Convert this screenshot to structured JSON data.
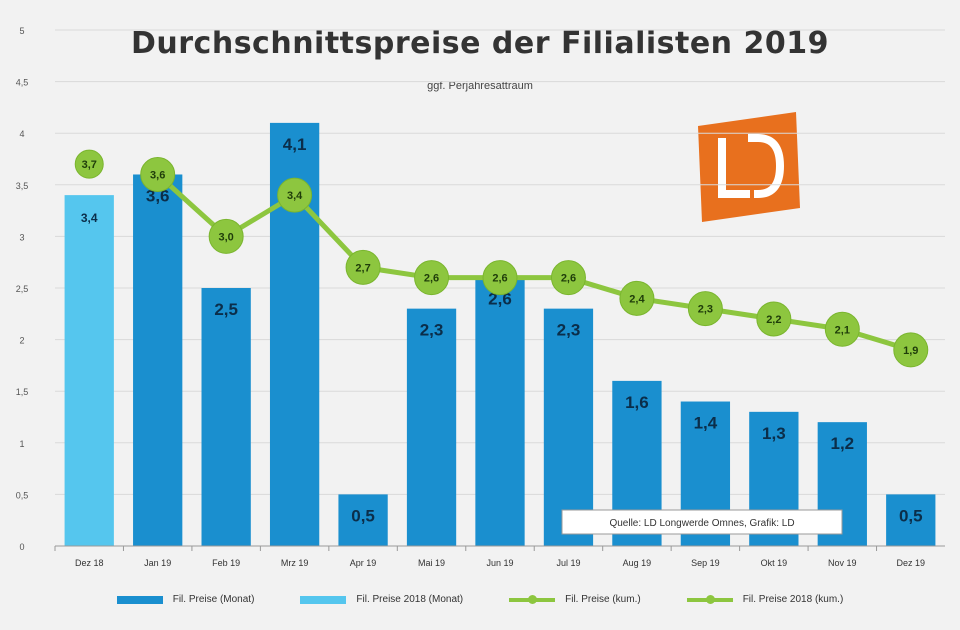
{
  "title": "Durchschnittspreise der Filialisten 2019",
  "subtitle": "ggf. Perjahresattraum",
  "source_note": "Quelle: LD Longwerde Omnes, Grafik: LD",
  "colors": {
    "bar_dark": "#1a8fcf",
    "bar_light": "#55c6ee",
    "line": "#8dc63f",
    "marker": "#8dc63f",
    "logo": "#e8701e",
    "grid": "#d9d9d9",
    "background": "#f2f2f2"
  },
  "chart_data": {
    "type": "bar",
    "categories": [
      "Dez 18",
      "Jan 19",
      "Feb 19",
      "Mrz 19",
      "Apr 19",
      "Mai 19",
      "Jun 19",
      "Jul 19",
      "Aug 19",
      "Sep 19",
      "Okt 19",
      "Nov 19",
      "Dez 19"
    ],
    "y_ticks": [
      "0",
      "0,5",
      "1",
      "1,5",
      "2",
      "2,5",
      "3",
      "3,5",
      "4",
      "4,5",
      "5"
    ],
    "ylim": [
      0,
      5
    ],
    "grid": true,
    "legend_position": "bottom",
    "series": [
      {
        "name": "Fil. Preise (Monat)",
        "type": "bar",
        "values": [
          null,
          3.6,
          2.5,
          4.1,
          0.5,
          2.3,
          2.6,
          2.3,
          1.6,
          1.4,
          1.3,
          1.2,
          0.5
        ],
        "labels": [
          "",
          "3,6",
          "2,5",
          "4,1",
          "0,5",
          "2,3",
          "2,6",
          "2,3",
          "1,6",
          "1,4",
          "1,3",
          "1,2",
          "0,5"
        ]
      },
      {
        "name": "Fil. Preise 2018 (Monat)",
        "type": "bar",
        "values": [
          3.4,
          null,
          null,
          null,
          null,
          null,
          null,
          null,
          null,
          null,
          null,
          null,
          null
        ],
        "labels": [
          "3,4",
          "",
          "",
          "",
          "",
          "",
          "",
          "",
          "",
          "",
          "",
          "",
          ""
        ]
      },
      {
        "name": "Fil. Preise (kum.)",
        "type": "line",
        "values": [
          null,
          3.6,
          3.0,
          3.4,
          2.7,
          2.6,
          2.6,
          2.6,
          2.4,
          2.3,
          2.2,
          2.1,
          1.9
        ],
        "labels": [
          "",
          "3,6",
          "3,0",
          "3,4",
          "2,7",
          "2,6",
          "2,6",
          "2,6",
          "2,4",
          "2,3",
          "2,2",
          "2,1",
          "1,9"
        ]
      },
      {
        "name": "Fil. Preise 2018 (kum.)",
        "type": "line",
        "values": [
          3.7,
          null,
          null,
          null,
          null,
          null,
          null,
          null,
          null,
          null,
          null,
          null,
          null
        ],
        "labels": [
          "3,7",
          "",
          "",
          "",
          "",
          "",
          "",
          "",
          "",
          "",
          "",
          "",
          ""
        ]
      }
    ]
  }
}
